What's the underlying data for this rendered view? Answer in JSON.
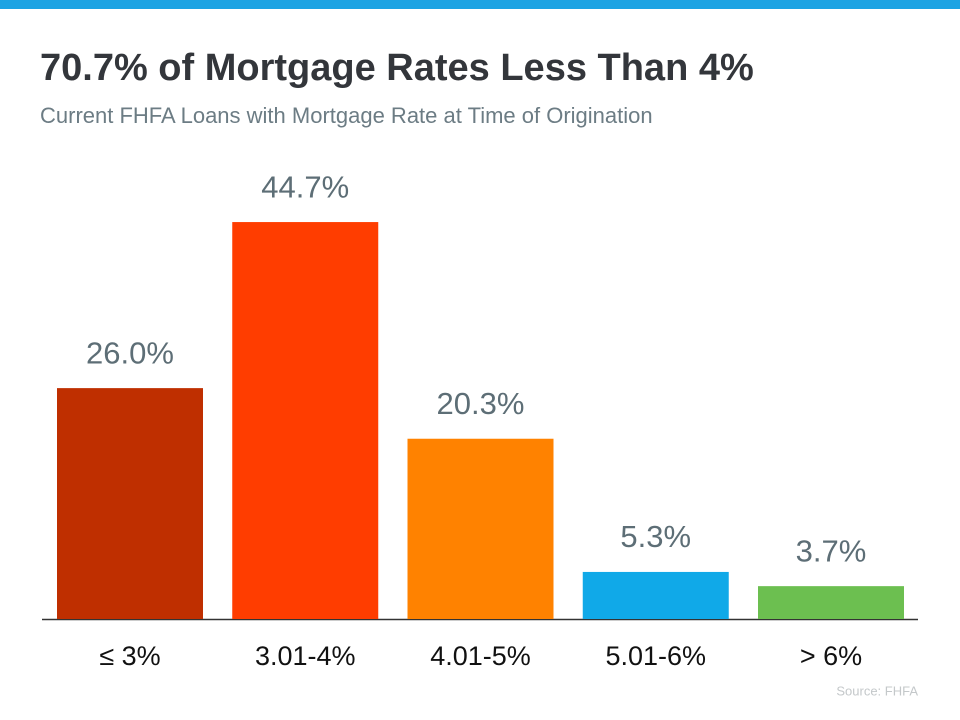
{
  "chart_data": {
    "type": "bar",
    "title": "70.7% of Mortgage Rates Less Than 4%",
    "subtitle": "Current FHFA Loans with Mortgage Rate at Time of Origination",
    "categories": [
      "≤ 3%",
      "3.01-4%",
      "4.01-5%",
      "5.01-6%",
      "> 6%"
    ],
    "values": [
      26.0,
      44.7,
      20.3,
      5.3,
      3.7
    ],
    "value_labels": [
      "26.0%",
      "44.7%",
      "20.3%",
      "5.3%",
      "3.7%"
    ],
    "colors": [
      "#bf2f00",
      "#ff3d00",
      "#ff8200",
      "#10a9e8",
      "#6cbf50"
    ],
    "source": "Source: FHFA"
  }
}
